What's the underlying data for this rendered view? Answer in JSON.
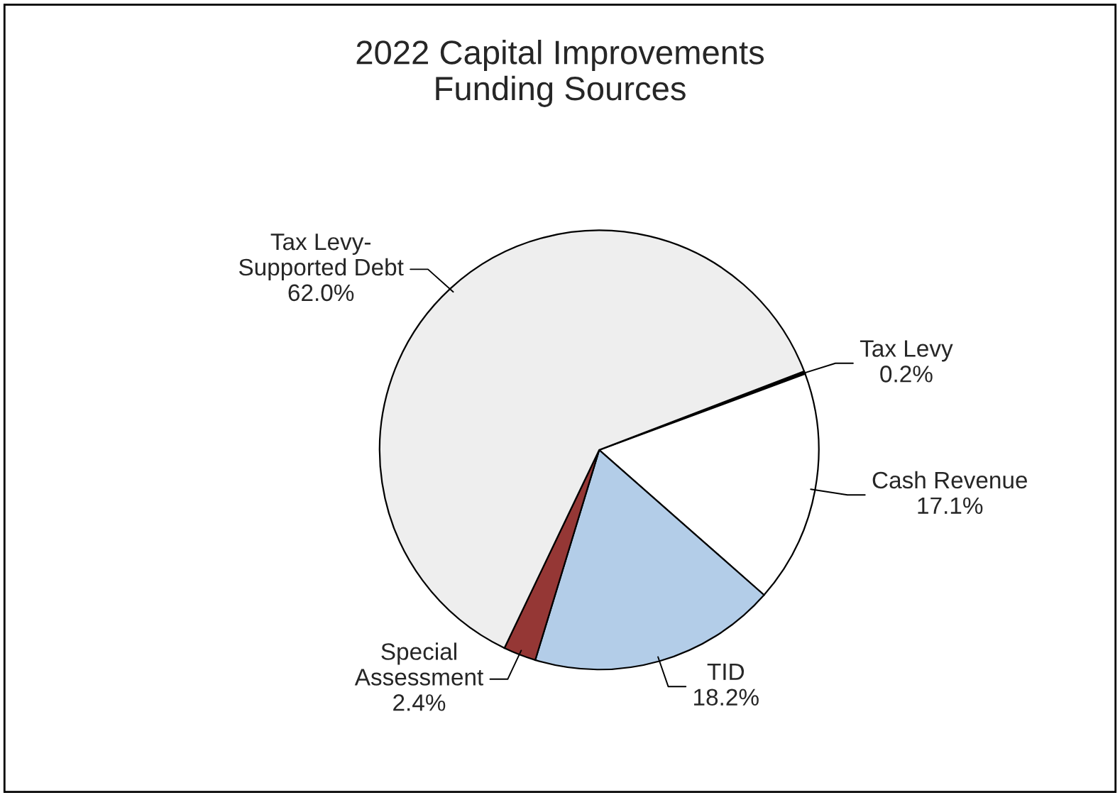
{
  "chart_data": {
    "type": "pie",
    "title": "2022 Capital Improvements\nFunding Sources",
    "categories": [
      "Tax Levy",
      "Cash Revenue",
      "TID",
      "Special\nAssessment",
      "Tax Levy-\nSupported Debt"
    ],
    "values": [
      0.2,
      17.1,
      18.2,
      2.4,
      62.0
    ],
    "value_labels": [
      "0.2%",
      "17.1%",
      "18.2%",
      "2.4%",
      "62.0%"
    ],
    "colors": [
      "#000000",
      "#ffffff",
      "#b3cde8",
      "#953735",
      "#eeeeee"
    ],
    "legend": false
  }
}
